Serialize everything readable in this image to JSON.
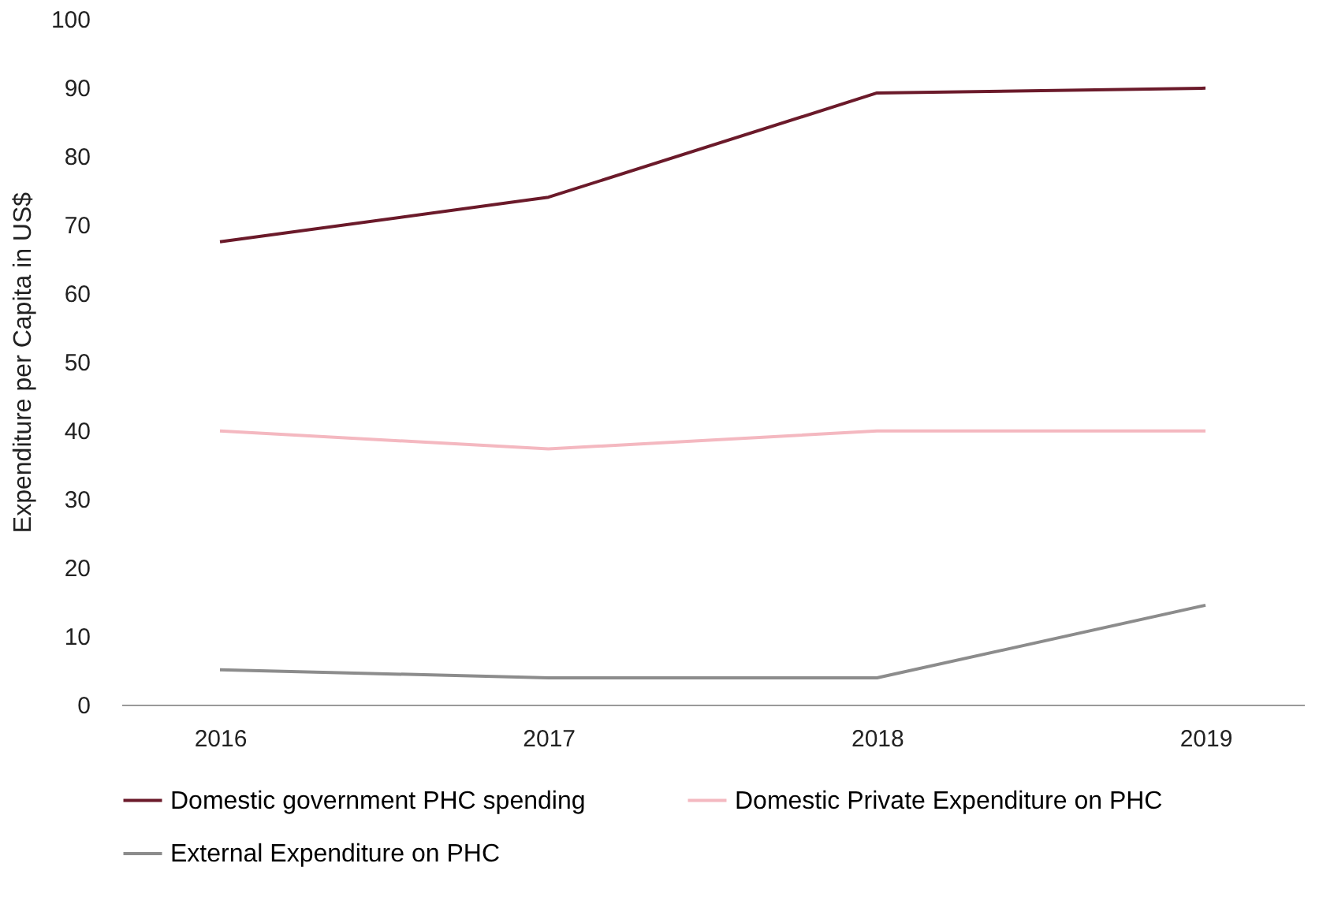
{
  "chart_data": {
    "type": "line",
    "ylabel": "Expenditure per Capita in US$",
    "categories": [
      "2016",
      "2017",
      "2018",
      "2019"
    ],
    "series": [
      {
        "name": "Domestic government PHC spending",
        "color": "#6b1a2a",
        "values": [
          67.5,
          74,
          89.2,
          89.9
        ]
      },
      {
        "name": "Domestic Private Expenditure on PHC",
        "color": "#f4b8c0",
        "values": [
          39.9,
          37.3,
          39.9,
          39.9
        ]
      },
      {
        "name": "External Expenditure on PHC",
        "color": "#8c8c8c",
        "values": [
          5.1,
          3.9,
          3.9,
          14.5
        ]
      }
    ],
    "ylim": [
      0,
      100
    ],
    "yticks": [
      0,
      10,
      20,
      30,
      40,
      50,
      60,
      70,
      80,
      90,
      100
    ],
    "grid": false,
    "legend": "bottom",
    "marker": "none",
    "line_style": "solid"
  }
}
